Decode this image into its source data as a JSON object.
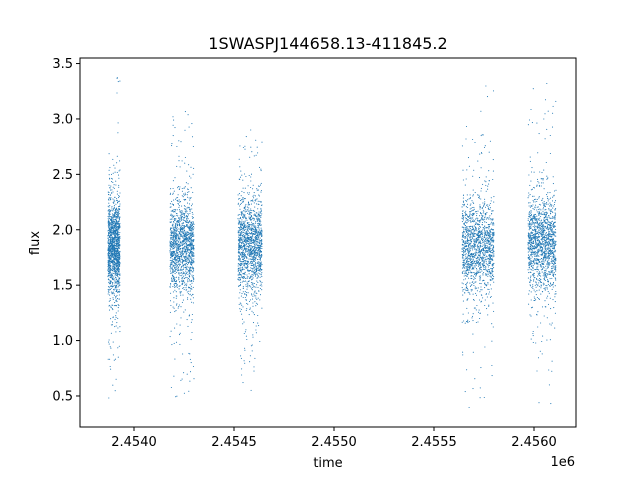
{
  "chart_data": {
    "type": "scatter",
    "title": "1SWASPJ144658.13-411845.2",
    "xlabel": "time",
    "ylabel": "flux",
    "x_offset_label": "1e6",
    "xlim": [
      2453730,
      2456210
    ],
    "ylim": [
      0.22,
      3.55
    ],
    "x_ticks": [
      2.454,
      2.4545,
      2.455,
      2.4555,
      2.456
    ],
    "x_tick_labels": [
      "2.4540",
      "2.4545",
      "2.4550",
      "2.4555",
      "2.4560"
    ],
    "y_ticks": [
      0.5,
      1.0,
      1.5,
      2.0,
      2.5,
      3.0,
      3.5
    ],
    "y_tick_labels": [
      "0.5",
      "1.0",
      "1.5",
      "2.0",
      "2.5",
      "3.0",
      "3.5"
    ],
    "grid": false,
    "marker_color": "#1f77b4",
    "series": [
      {
        "segments": [
          {
            "x_start": 2453870,
            "x_end": 2453930,
            "median": 1.85,
            "min": 0.35,
            "max": 3.38
          },
          {
            "x_start": 2454180,
            "x_end": 2454300,
            "median": 1.85,
            "min": 0.38,
            "max": 3.1
          },
          {
            "x_start": 2454520,
            "x_end": 2454640,
            "median": 1.85,
            "min": 0.55,
            "max": 2.9
          },
          {
            "x_start": 2455640,
            "x_end": 2455800,
            "median": 1.85,
            "min": 0.35,
            "max": 3.32
          },
          {
            "x_start": 2455970,
            "x_end": 2456110,
            "median": 1.9,
            "min": 0.35,
            "max": 3.32
          }
        ]
      }
    ]
  }
}
